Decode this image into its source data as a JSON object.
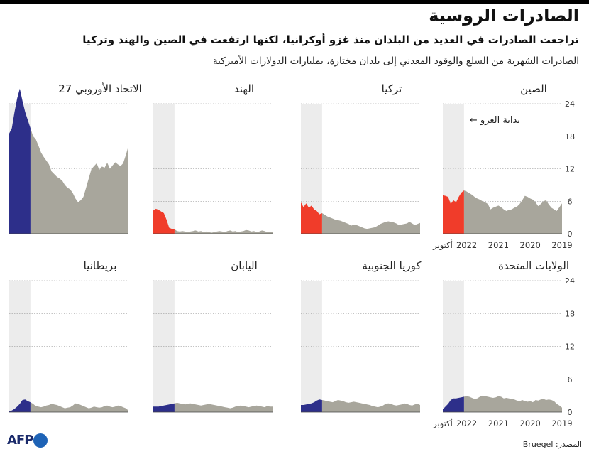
{
  "header": {
    "title": "الصادرات الروسية",
    "subtitle": "تراجعت الصادرات في العديد من البلدان منذ غزو أوكرانيا، لكنها ارتفعت في الصين والهند وتركيا",
    "description": "الصادرات الشهرية من السلع والوقود المعدني إلى بلدان مختارة، بمليارات الدولارات الأميركية"
  },
  "footer": {
    "source": "المصدر: Bruegel",
    "logo_text": "AFP"
  },
  "colors": {
    "pre_invasion_increase": "#f03c2a",
    "pre_invasion_decrease": "#2d2f8a",
    "post_invasion": "#a8a69c",
    "invasion_shade": "#ececec",
    "gridline": "#8a8a8a"
  },
  "chart_data": {
    "type": "area",
    "units": "مليارات الدولارات الأميركية",
    "ylim": [
      0,
      24
    ],
    "yticks": [
      "0",
      "6",
      "12",
      "18",
      "24"
    ],
    "x_range": [
      "2019-01",
      "2022-10"
    ],
    "xtick_labels": [
      "2019",
      "2020",
      "2021",
      "2022",
      "أكتوبر"
    ],
    "invasion_label": "بداية الغزو",
    "invasion_date": "2022-02",
    "panels": [
      {
        "name": "الصين",
        "pre_color": "increase",
        "values": [
          5.6,
          4.9,
          4.2,
          4.5,
          4.8,
          5.4,
          6.2,
          6.0,
          5.5,
          5.1,
          5.8,
          6.3,
          6.5,
          6.8,
          7.0,
          6.2,
          5.5,
          5.0,
          4.8,
          4.5,
          4.4,
          4.2,
          4.5,
          4.9,
          5.2,
          5.0,
          4.8,
          4.5,
          5.5,
          5.8,
          6.0,
          6.3,
          6.5,
          6.8,
          7.2,
          7.5,
          7.8,
          8.0,
          7.6,
          6.8,
          5.8,
          6.2,
          5.5,
          6.8,
          7.0,
          7.1
        ]
      },
      {
        "name": "تركيا",
        "pre_color": "increase",
        "values": [
          2.0,
          1.8,
          1.6,
          1.9,
          2.2,
          1.9,
          1.8,
          1.7,
          1.6,
          1.9,
          2.1,
          2.2,
          2.3,
          2.2,
          2.0,
          1.8,
          1.5,
          1.2,
          1.1,
          1.0,
          0.9,
          1.0,
          1.2,
          1.4,
          1.6,
          1.7,
          1.5,
          1.8,
          2.0,
          2.2,
          2.4,
          2.5,
          2.6,
          2.8,
          3.0,
          3.2,
          3.5,
          3.8,
          3.6,
          4.2,
          4.5,
          5.2,
          4.8,
          5.6,
          4.9,
          5.8
        ]
      },
      {
        "name": "الهند",
        "pre_color": "increase",
        "values": [
          0.3,
          0.4,
          0.3,
          0.5,
          0.6,
          0.4,
          0.3,
          0.5,
          0.4,
          0.6,
          0.7,
          0.5,
          0.4,
          0.3,
          0.5,
          0.4,
          0.6,
          0.5,
          0.3,
          0.4,
          0.5,
          0.4,
          0.3,
          0.2,
          0.3,
          0.4,
          0.3,
          0.5,
          0.4,
          0.6,
          0.5,
          0.4,
          0.3,
          0.4,
          0.5,
          0.4,
          0.5,
          0.8,
          0.9,
          1.1,
          2.6,
          3.8,
          4.1,
          4.4,
          4.6,
          4.3
        ]
      },
      {
        "name": "الاتحاد الأوروبي 27",
        "pre_color": "decrease",
        "values": [
          16.2,
          14.5,
          13.0,
          12.5,
          12.8,
          13.2,
          12.6,
          12.0,
          13.1,
          12.2,
          12.4,
          11.8,
          13.0,
          12.5,
          11.9,
          10.2,
          8.5,
          6.8,
          6.2,
          5.8,
          6.5,
          7.5,
          8.2,
          8.5,
          9.0,
          9.8,
          10.2,
          10.5,
          11.0,
          11.5,
          12.8,
          13.5,
          14.2,
          15.0,
          16.3,
          17.5,
          18.0,
          19.5,
          21.0,
          22.5,
          24.5,
          26.8,
          25.0,
          22.5,
          19.5,
          18.5
        ]
      },
      {
        "name": "الولايات المتحدة",
        "pre_color": "decrease",
        "values": [
          0.8,
          1.2,
          1.5,
          2.0,
          2.2,
          2.3,
          2.2,
          2.4,
          2.3,
          2.1,
          2.2,
          1.8,
          2.0,
          1.9,
          2.0,
          2.2,
          2.0,
          2.1,
          2.3,
          2.4,
          2.5,
          2.6,
          2.5,
          2.8,
          2.9,
          2.7,
          2.6,
          2.7,
          2.8,
          2.9,
          3.0,
          2.8,
          2.5,
          2.4,
          2.6,
          2.8,
          2.9,
          2.8,
          2.7,
          2.6,
          2.5,
          2.5,
          2.2,
          1.5,
          1.0,
          0.5
        ]
      },
      {
        "name": "كوريا الجنوبية",
        "pre_color": "decrease",
        "values": [
          1.3,
          1.5,
          1.4,
          1.2,
          1.3,
          1.5,
          1.6,
          1.4,
          1.3,
          1.2,
          1.3,
          1.5,
          1.6,
          1.5,
          1.2,
          1.0,
          0.9,
          1.0,
          1.1,
          1.3,
          1.4,
          1.5,
          1.6,
          1.7,
          1.8,
          1.9,
          1.8,
          1.7,
          1.8,
          2.0,
          2.1,
          2.2,
          2.0,
          1.8,
          1.9,
          2.0,
          2.1,
          2.2,
          2.3,
          2.1,
          1.8,
          1.6,
          1.5,
          1.4,
          1.3,
          1.3
        ]
      },
      {
        "name": "اليابان",
        "pre_color": "decrease",
        "values": [
          1.0,
          1.0,
          1.1,
          0.9,
          1.0,
          1.1,
          1.2,
          1.1,
          1.0,
          0.9,
          1.0,
          1.1,
          1.2,
          1.1,
          1.0,
          0.8,
          0.7,
          0.8,
          0.9,
          1.0,
          1.1,
          1.2,
          1.3,
          1.4,
          1.5,
          1.4,
          1.3,
          1.2,
          1.3,
          1.4,
          1.5,
          1.6,
          1.5,
          1.4,
          1.5,
          1.6,
          1.7,
          1.6,
          1.5,
          1.4,
          1.3,
          1.2,
          1.1,
          1.0,
          1.0,
          1.0
        ]
      },
      {
        "name": "بريطانيا",
        "pre_color": "decrease",
        "values": [
          0.3,
          0.7,
          0.9,
          1.1,
          1.2,
          1.0,
          0.9,
          1.0,
          1.2,
          1.1,
          0.9,
          0.8,
          0.9,
          1.0,
          0.8,
          0.7,
          0.9,
          1.1,
          1.3,
          1.5,
          1.6,
          1.2,
          0.9,
          0.8,
          0.7,
          0.9,
          1.1,
          1.3,
          1.4,
          1.5,
          1.3,
          1.2,
          1.0,
          0.9,
          1.0,
          1.1,
          1.5,
          1.8,
          2.0,
          2.3,
          2.2,
          1.5,
          1.0,
          0.6,
          0.3,
          0.2
        ]
      }
    ]
  }
}
